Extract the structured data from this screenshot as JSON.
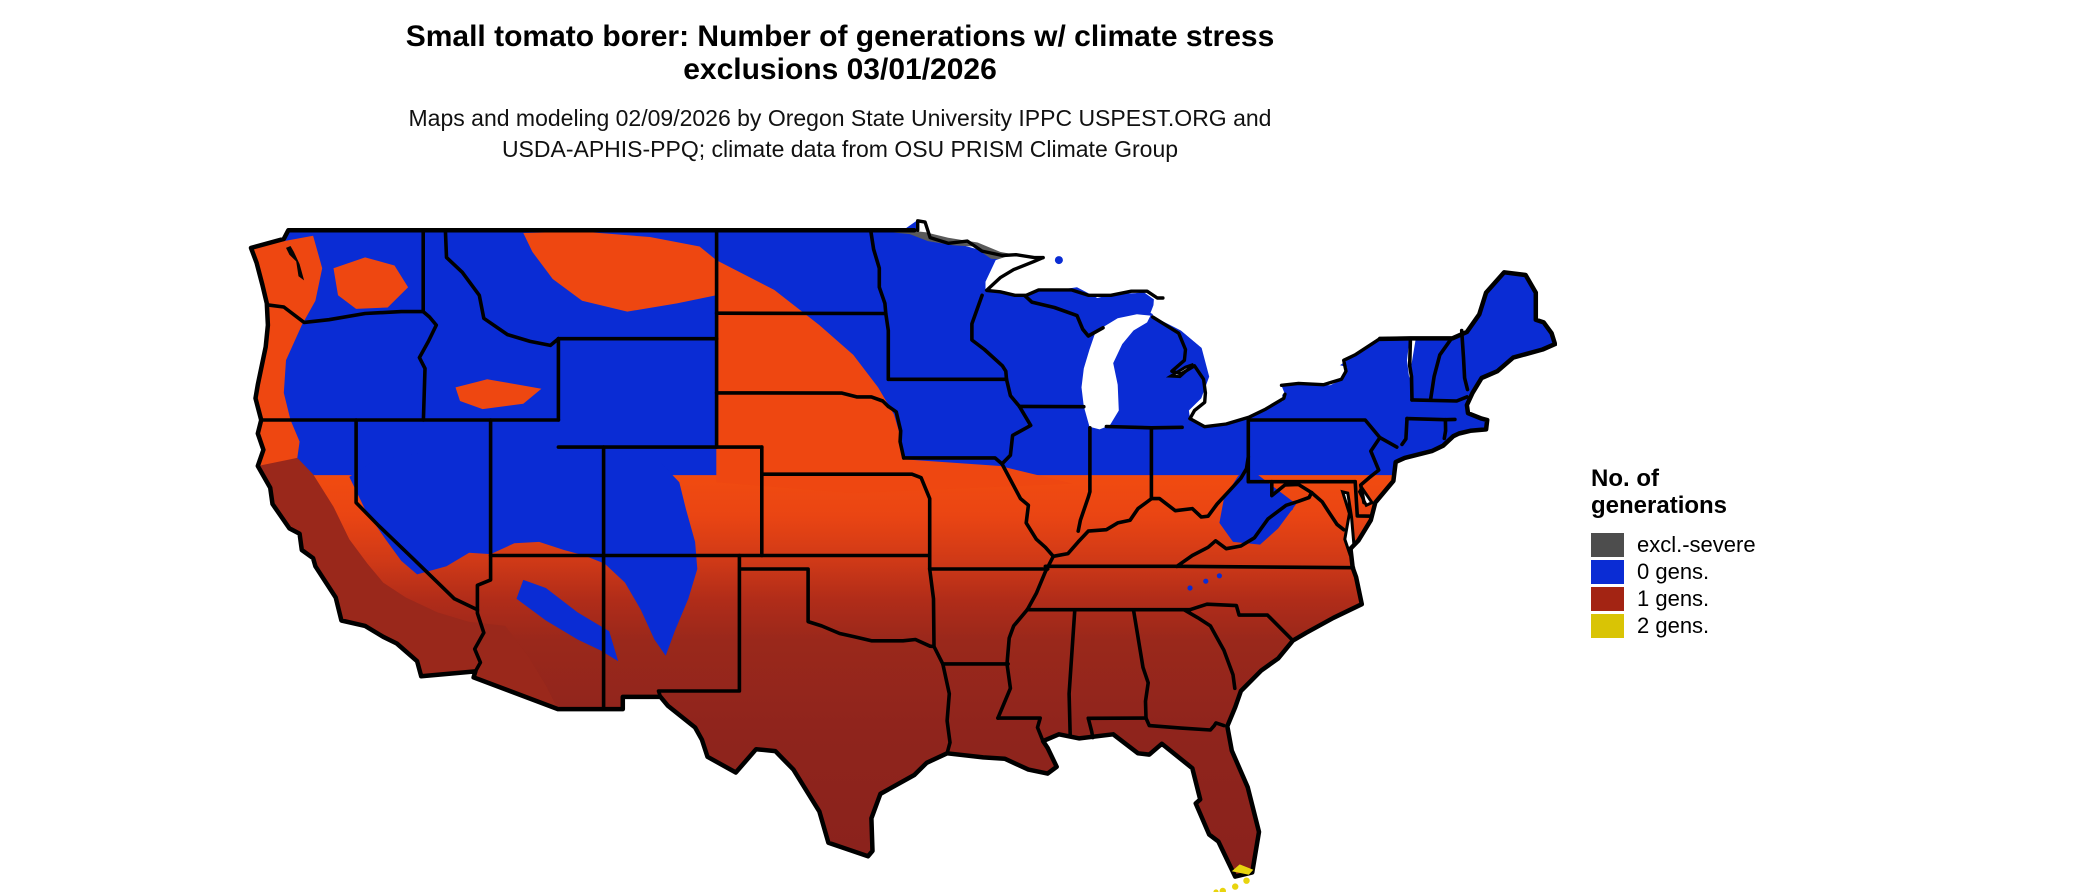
{
  "header": {
    "title_line1": "Small tomato borer: Number of generations w/ climate stress",
    "title_line2": "exclusions 03/01/2026",
    "subtitle_line1": "Maps and modeling 02/09/2026 by Oregon State University IPPC USPEST.ORG and",
    "subtitle_line2": "USDA-APHIS-PPQ; climate data from OSU PRISM Climate Group"
  },
  "legend": {
    "title_line1": "No. of",
    "title_line2": "generations",
    "items": [
      {
        "label": "excl.-severe",
        "color": "#4d4d4d"
      },
      {
        "label": "0 gens.",
        "color": "#0a2cd4"
      },
      {
        "label": "1 gens.",
        "color": "#a32413"
      },
      {
        "label": "2 gens.",
        "color": "#d9c405"
      }
    ]
  },
  "map": {
    "region": "Contiguous United States",
    "palette": {
      "zero_gens_blue": "#0a2cd4",
      "low_orange": "#ee4711",
      "orange_bright": "#f14b10",
      "mid_red": "#cf3917",
      "one_gen_dark_red": "#9a281b",
      "deep_south_red": "#8a221c",
      "two_gens_yellow": "#e8d40e",
      "excluded_gray": "#5a5a5a",
      "water_white": "#ffffff",
      "boundary_black": "#000000",
      "sound_black": "#050505"
    },
    "zones": [
      {
        "category": "excl.-severe",
        "extent": "narrow band along the far-northern Minnesota border"
      },
      {
        "category": "0 gens.",
        "extent": "northern tier, Great Lakes states, Northeast, Rockies, Great Basin, Sierra Nevada, Cascades and high Appalachians"
      },
      {
        "category": "1 gens.",
        "extent": "southern tier from California and the desert Southwest across Texas and the Gulf states to the Carolinas and Florida"
      },
      {
        "category": "2 gens.",
        "extent": "extreme southern Florida coast and the Florida Keys"
      }
    ]
  }
}
